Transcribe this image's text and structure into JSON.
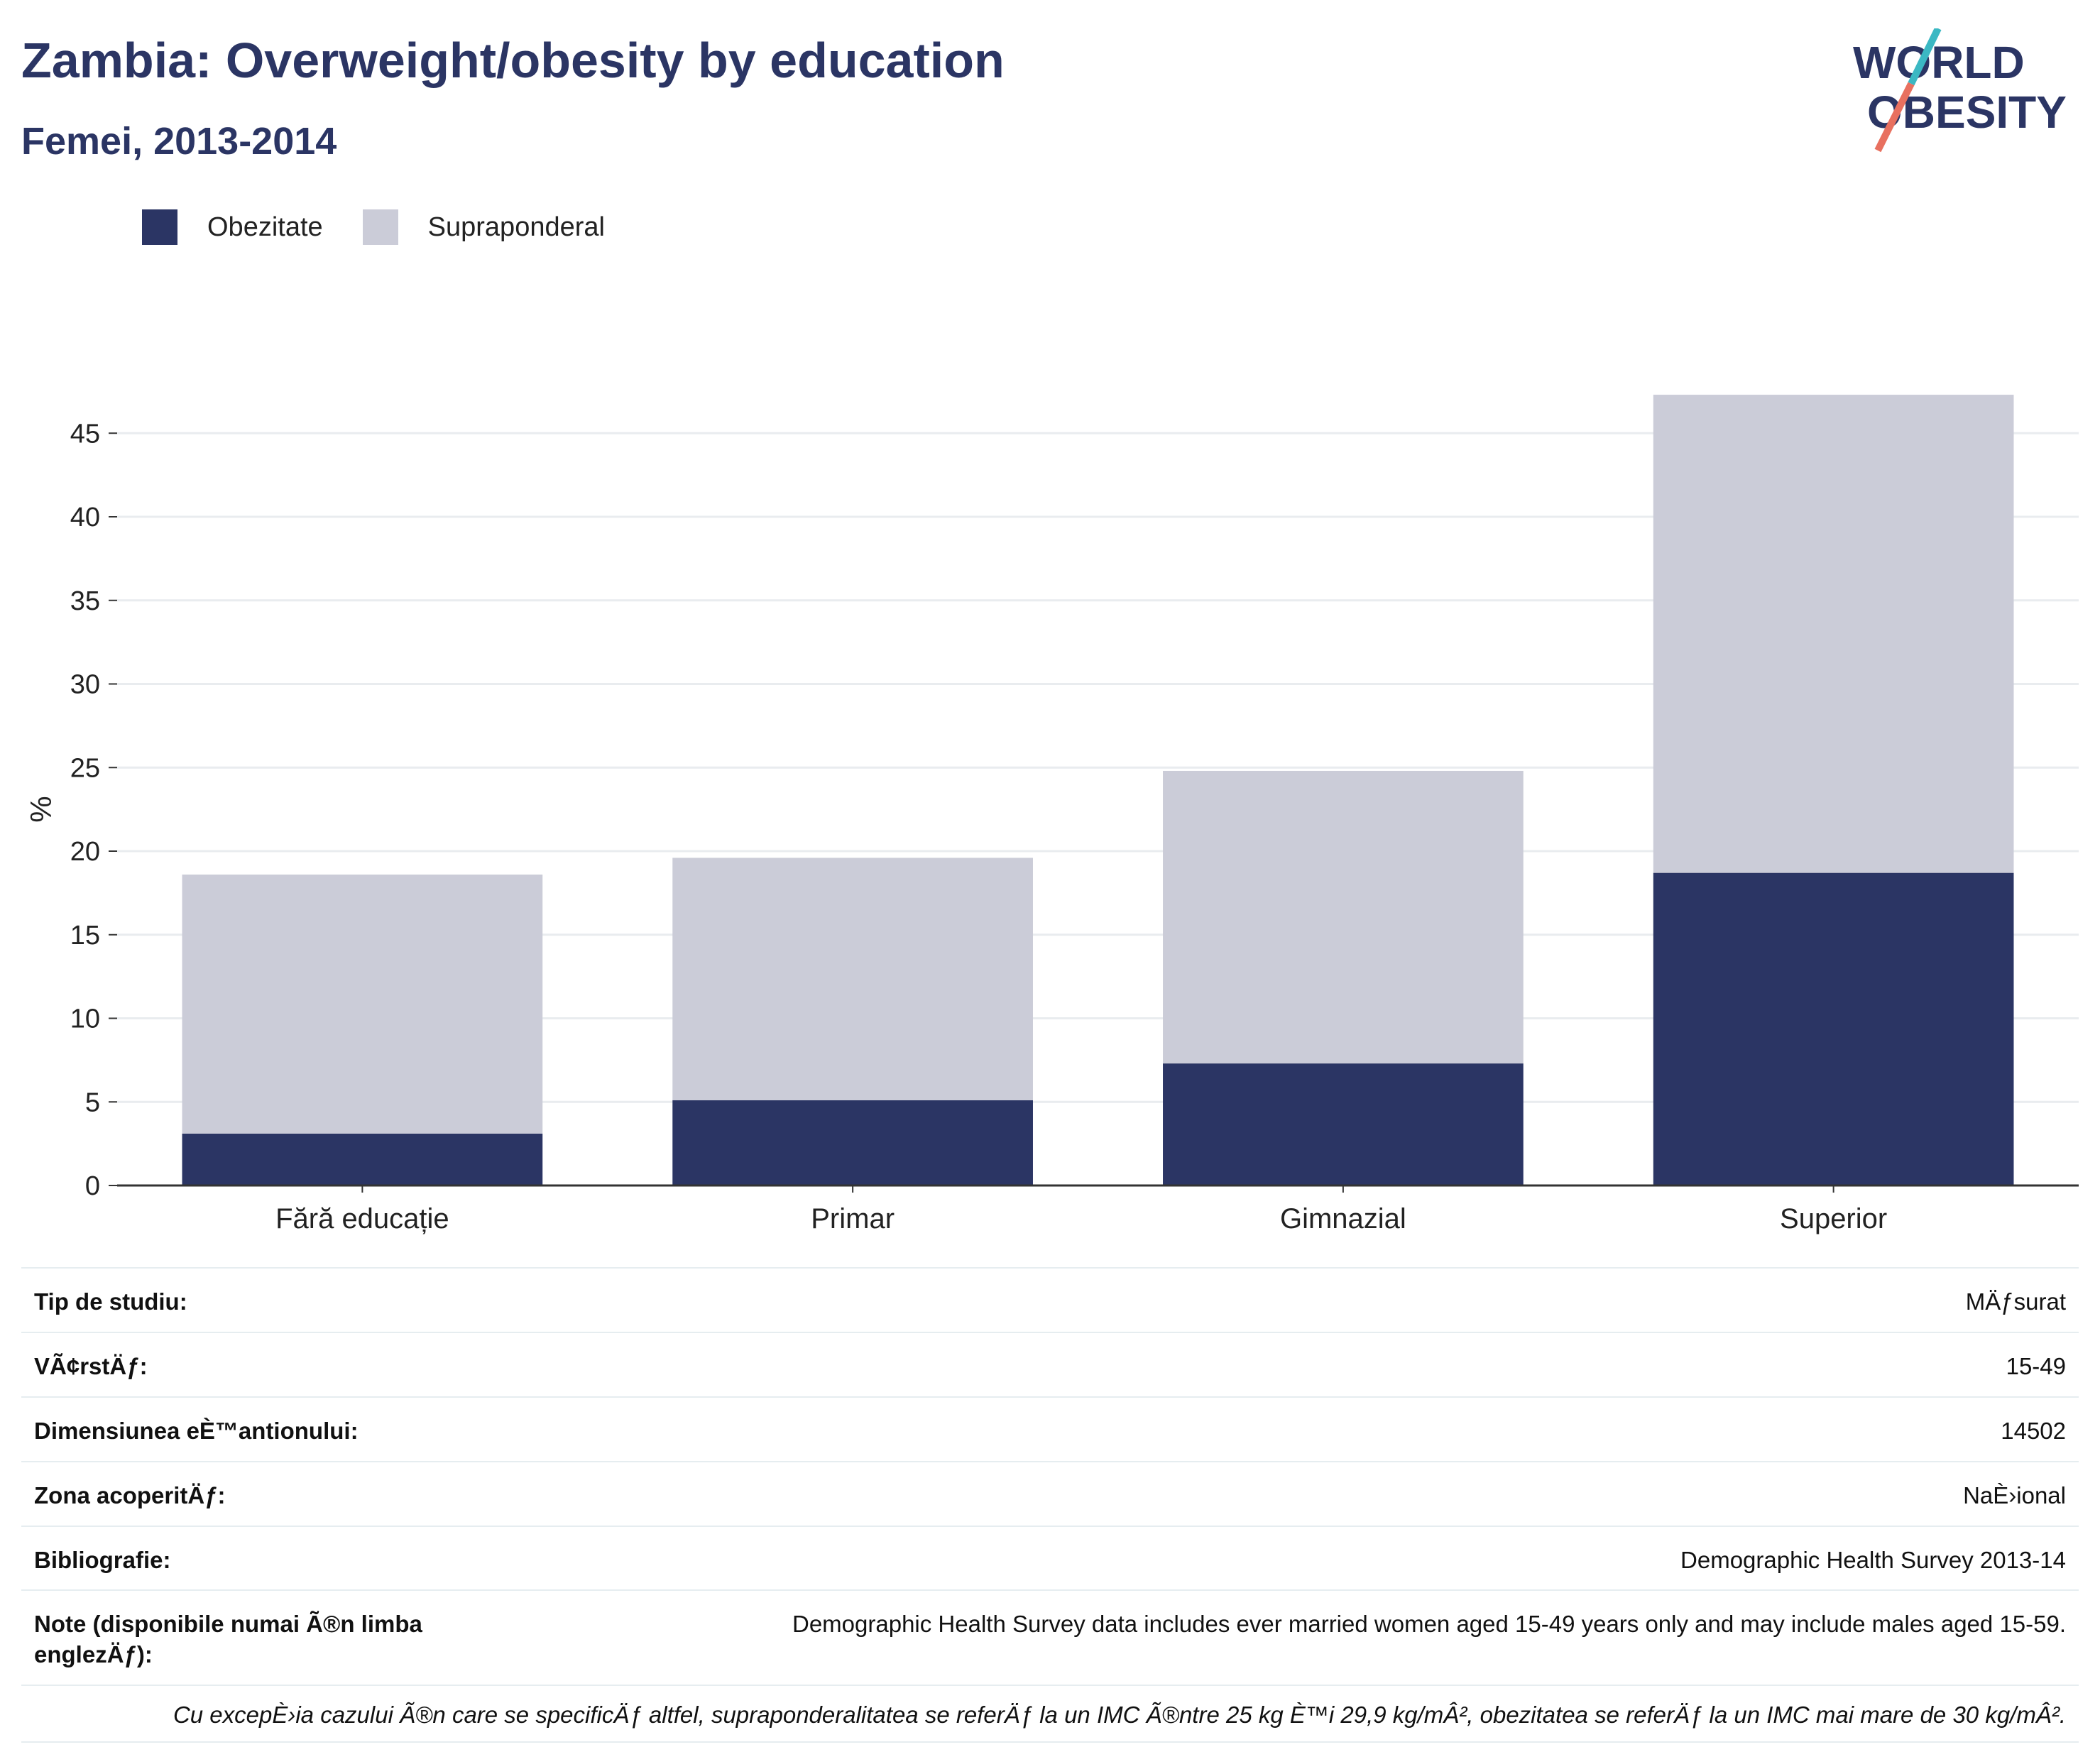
{
  "header": {
    "title": "Zambia: Overweight/obesity by education",
    "subtitle": "Femei, 2013-2014"
  },
  "logo": {
    "line1": "WORLD",
    "line2": "OBESITY",
    "accent_teal": "#3bb8c3",
    "accent_coral": "#e8705f",
    "text_color": "#2b3564"
  },
  "colors": {
    "obesity": "#2b3564",
    "overweight": "#cbccd8",
    "grid": "#e9ecef",
    "axis": "#333333"
  },
  "legend": [
    {
      "label": "Obezitate",
      "color": "#2b3564"
    },
    {
      "label": "Supraponderal",
      "color": "#cbccd8"
    }
  ],
  "chart_data": {
    "type": "bar",
    "stacked": true,
    "categories": [
      "Fără educație",
      "Primar",
      "Gimnazial",
      "Superior"
    ],
    "series": [
      {
        "name": "Obezitate",
        "values": [
          3.1,
          5.1,
          7.3,
          18.7
        ]
      },
      {
        "name": "Supraponderal",
        "values": [
          15.5,
          14.5,
          17.5,
          28.6
        ]
      }
    ],
    "ylabel": "%",
    "ylim": [
      0,
      47.5
    ],
    "yticks": [
      0,
      5,
      10,
      15,
      20,
      25,
      30,
      35,
      40,
      45
    ],
    "grid": true,
    "legend_position": "top-left"
  },
  "meta": [
    {
      "key": "Tip de studiu:",
      "value": "MÄƒsurat"
    },
    {
      "key": "VÃ¢rstÄƒ:",
      "value": "15-49"
    },
    {
      "key": "Dimensiunea eÈ™antionului:",
      "value": "14502"
    },
    {
      "key": "Zona acoperitÄƒ:",
      "value": "NaÈ›ional"
    },
    {
      "key": "Bibliografie:",
      "value": "Demographic Health Survey 2013-14"
    },
    {
      "key": "Note (disponibile numai Ã®n limba englezÄƒ):",
      "value": "Demographic Health Survey data includes ever married women aged 15-49 years only and may include males aged 15-59."
    }
  ],
  "footnote": "Cu excepÈ›ia cazului Ã®n care se specificÄƒ altfel, supraponderalitatea se referÄƒ la un IMC Ã®ntre 25 kg È™i 29,9 kg/mÂ², obezitatea se referÄƒ la un IMC mai mare de 30 kg/mÂ²."
}
